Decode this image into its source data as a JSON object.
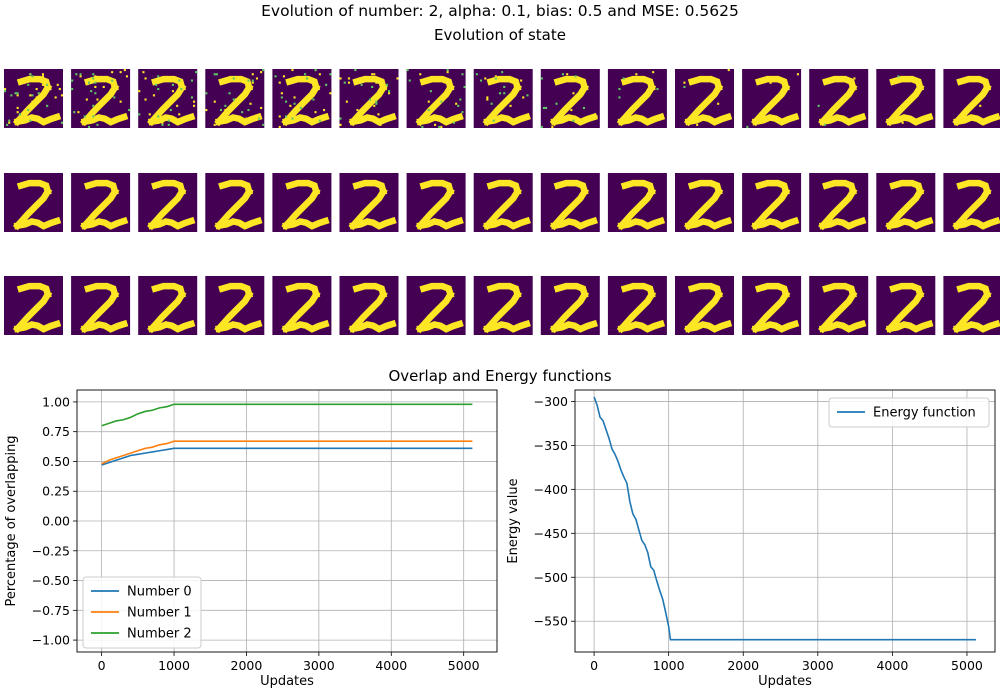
{
  "figure": {
    "suptitle": "Evolution of number: 2, alpha: 0.1, bias: 0.5 and MSE: 0.5625",
    "state_title": "Evolution of state",
    "lower_title": "Overlap and Energy functions"
  },
  "state_grid": {
    "rows": 3,
    "cols": 15,
    "background_color": "#440154",
    "digit_color": "#fde725",
    "noise_color": "#5ec962",
    "digit": "2",
    "noise_levels": [
      0.05,
      0.048,
      0.046,
      0.044,
      0.04,
      0.036,
      0.032,
      0.028,
      0.02,
      0.012,
      0.008,
      0.006,
      0.004,
      0.003,
      0.002,
      0.0,
      0.0,
      0.0,
      0.0,
      0.0,
      0.0,
      0.0,
      0.0,
      0.0,
      0.0,
      0.0,
      0.0,
      0.0,
      0.0,
      0.0,
      0.0,
      0.0,
      0.0,
      0.0,
      0.0,
      0.0,
      0.0,
      0.0,
      0.0,
      0.0,
      0.0,
      0.0,
      0.0,
      0.0,
      0.0
    ]
  },
  "colors": {
    "number0": "#1f77b4",
    "number1": "#ff7f0e",
    "number2": "#2ca02c",
    "energy": "#1f77b4",
    "grid": "#b0b0b0"
  },
  "chart_data": [
    {
      "type": "line",
      "title": "",
      "xlabel": "Updates",
      "ylabel": "Percentage of overlapping",
      "xlim": [
        -340,
        5460
      ],
      "ylim": [
        -1.1,
        1.1
      ],
      "xticks": [
        0,
        1000,
        2000,
        3000,
        4000,
        5000
      ],
      "xtick_labels": [
        "0",
        "1000",
        "2000",
        "3000",
        "4000",
        "5000"
      ],
      "yticks": [
        1.0,
        0.75,
        0.5,
        0.25,
        0.0,
        -0.25,
        -0.5,
        -0.75,
        -1.0
      ],
      "ytick_labels": [
        "1.00",
        "0.75",
        "0.50",
        "0.25",
        "0.00",
        "−0.25",
        "−0.50",
        "−0.75",
        "−1.00"
      ],
      "grid": true,
      "legend_position": "lower-left",
      "series": [
        {
          "name": "Number 0",
          "x": [
            0,
            100,
            200,
            300,
            400,
            500,
            600,
            700,
            800,
            900,
            1000,
            1024,
            5120
          ],
          "y": [
            0.47,
            0.49,
            0.51,
            0.53,
            0.55,
            0.56,
            0.57,
            0.58,
            0.59,
            0.6,
            0.61,
            0.61,
            0.61
          ]
        },
        {
          "name": "Number 1",
          "x": [
            0,
            100,
            200,
            300,
            400,
            500,
            600,
            700,
            800,
            900,
            1000,
            1024,
            5120
          ],
          "y": [
            0.48,
            0.51,
            0.53,
            0.55,
            0.57,
            0.59,
            0.61,
            0.62,
            0.64,
            0.65,
            0.67,
            0.67,
            0.67
          ]
        },
        {
          "name": "Number 2",
          "x": [
            0,
            100,
            200,
            300,
            400,
            500,
            600,
            700,
            800,
            900,
            1000,
            1024,
            5120
          ],
          "y": [
            0.8,
            0.82,
            0.84,
            0.85,
            0.87,
            0.9,
            0.92,
            0.93,
            0.95,
            0.96,
            0.98,
            0.98,
            0.98
          ]
        }
      ]
    },
    {
      "type": "line",
      "title": "",
      "xlabel": "Updates",
      "ylabel": "Energy value",
      "xlim": [
        -256,
        5376
      ],
      "ylim": [
        -585,
        -287
      ],
      "xticks": [
        0,
        1000,
        2000,
        3000,
        4000,
        5000
      ],
      "xtick_labels": [
        "0",
        "1000",
        "2000",
        "3000",
        "4000",
        "5000"
      ],
      "yticks": [
        -300,
        -350,
        -400,
        -450,
        -500,
        -550
      ],
      "ytick_labels": [
        "−300",
        "−350",
        "−400",
        "−450",
        "−500",
        "−550"
      ],
      "grid": true,
      "legend_position": "upper-right",
      "series": [
        {
          "name": "Energy function",
          "x": [
            0,
            40,
            80,
            120,
            160,
            200,
            240,
            280,
            320,
            360,
            400,
            440,
            480,
            520,
            560,
            600,
            640,
            680,
            720,
            760,
            800,
            840,
            880,
            920,
            960,
            1000,
            1024,
            1100,
            5120
          ],
          "y": [
            -295,
            -304,
            -318,
            -322,
            -332,
            -342,
            -354,
            -360,
            -368,
            -378,
            -386,
            -393,
            -414,
            -428,
            -434,
            -446,
            -458,
            -463,
            -472,
            -488,
            -492,
            -504,
            -515,
            -525,
            -540,
            -556,
            -571,
            -571,
            -571
          ]
        }
      ]
    }
  ]
}
